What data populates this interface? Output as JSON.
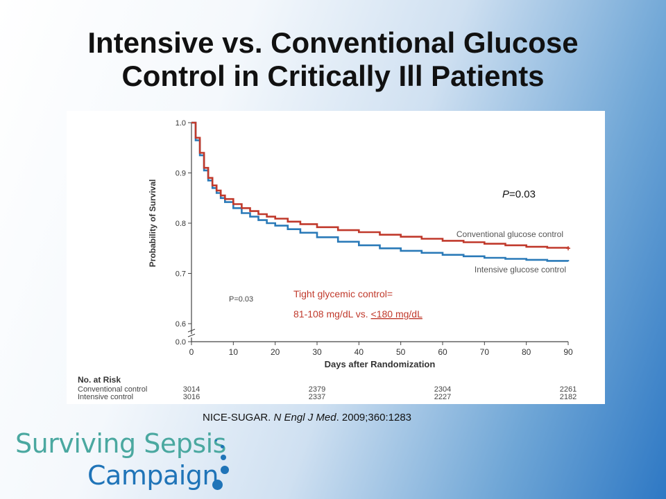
{
  "title_line1": "Intensive vs. Conventional Glucose",
  "title_line2": "Control in Critically Ill Patients",
  "citation": {
    "prefix": "NICE-SUGAR. ",
    "journal": "N Engl J Med",
    "suffix": ". 2009;360:1283"
  },
  "logo": {
    "line1": "Surviving Sepsis",
    "line2": "Campaign"
  },
  "annotations": {
    "p_value_prefix": "P",
    "p_value_suffix": "=0.03",
    "p_inner": "P=0.03",
    "tight_line1": "Tight glycemic control=",
    "tight_line2_a": "81-108 mg/dL vs. ",
    "tight_line2_b": "<180 mg/dL"
  },
  "colors": {
    "conventional": "#c0392b",
    "intensive": "#2a7ab8",
    "annotation_red": "#c0392b"
  },
  "chart_data": {
    "type": "line",
    "xlabel": "Days after Randomization",
    "ylabel": "Probability of Survival",
    "xlim": [
      0,
      90
    ],
    "ylim": [
      0.0,
      1.0
    ],
    "x_ticks": [
      0,
      10,
      20,
      30,
      40,
      50,
      60,
      70,
      80,
      90
    ],
    "y_ticks": [
      "0.0",
      "0.6",
      "0.7",
      "0.8",
      "0.9",
      "1.0"
    ],
    "axis_break": true,
    "x": [
      0,
      1,
      2,
      3,
      4,
      5,
      6,
      7,
      8,
      10,
      12,
      14,
      16,
      18,
      20,
      23,
      26,
      30,
      35,
      40,
      45,
      50,
      55,
      60,
      65,
      70,
      75,
      80,
      85,
      90
    ],
    "series": [
      {
        "name": "Conventional glucose control",
        "values": [
          1.0,
          0.97,
          0.94,
          0.91,
          0.89,
          0.875,
          0.865,
          0.855,
          0.848,
          0.838,
          0.83,
          0.824,
          0.818,
          0.813,
          0.809,
          0.803,
          0.798,
          0.792,
          0.786,
          0.782,
          0.777,
          0.773,
          0.769,
          0.765,
          0.762,
          0.759,
          0.756,
          0.753,
          0.751,
          0.75
        ]
      },
      {
        "name": "Intensive glucose control",
        "values": [
          1.0,
          0.965,
          0.935,
          0.905,
          0.885,
          0.87,
          0.86,
          0.85,
          0.842,
          0.83,
          0.82,
          0.813,
          0.806,
          0.8,
          0.795,
          0.788,
          0.781,
          0.772,
          0.763,
          0.756,
          0.75,
          0.745,
          0.741,
          0.737,
          0.734,
          0.731,
          0.729,
          0.727,
          0.725,
          0.724
        ]
      }
    ],
    "at_risk": {
      "header": "No. at Risk",
      "rows": [
        {
          "label": "Conventional control",
          "values": [
            "3014",
            "2379",
            "2304",
            "2261"
          ]
        },
        {
          "label": "Intensive control",
          "values": [
            "3016",
            "2337",
            "2227",
            "2182"
          ]
        }
      ],
      "at_days": [
        0,
        30,
        60,
        90
      ]
    }
  }
}
